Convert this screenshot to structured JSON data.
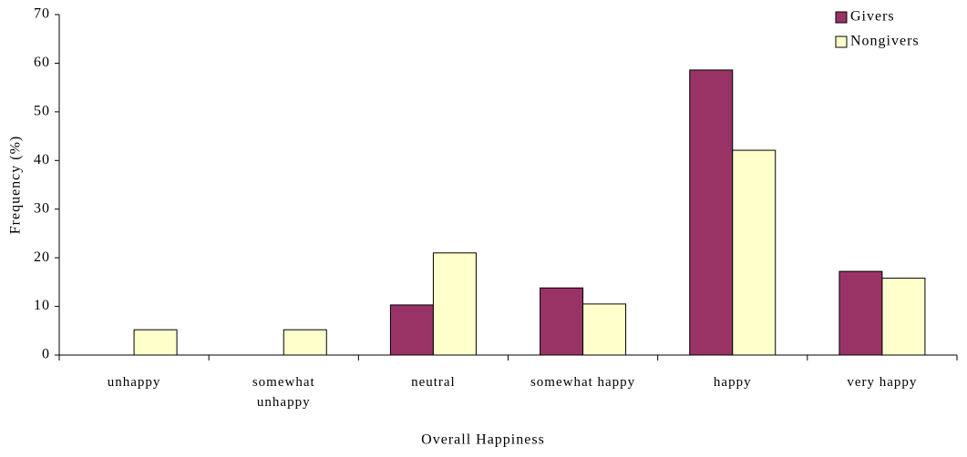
{
  "chart_data": {
    "type": "bar",
    "x_label": "Overall Happiness",
    "y_label": "Frequency (%)",
    "categories": [
      "unhappy",
      "somewhat unhappy",
      "neutral",
      "somewhat happy",
      "happy",
      "very happy"
    ],
    "series": [
      {
        "name": "Givers",
        "color": "#993366",
        "values": [
          0,
          0,
          10.3,
          13.8,
          58.6,
          17.2
        ]
      },
      {
        "name": "Nongivers",
        "color": "#ffffcc",
        "values": [
          5.2,
          5.2,
          21.0,
          10.5,
          42.1,
          15.8
        ]
      }
    ],
    "ylim": [
      0,
      70
    ],
    "yticks": [
      0,
      10,
      20,
      30,
      40,
      50,
      60,
      70
    ],
    "grid": false,
    "legend": "top-right"
  }
}
